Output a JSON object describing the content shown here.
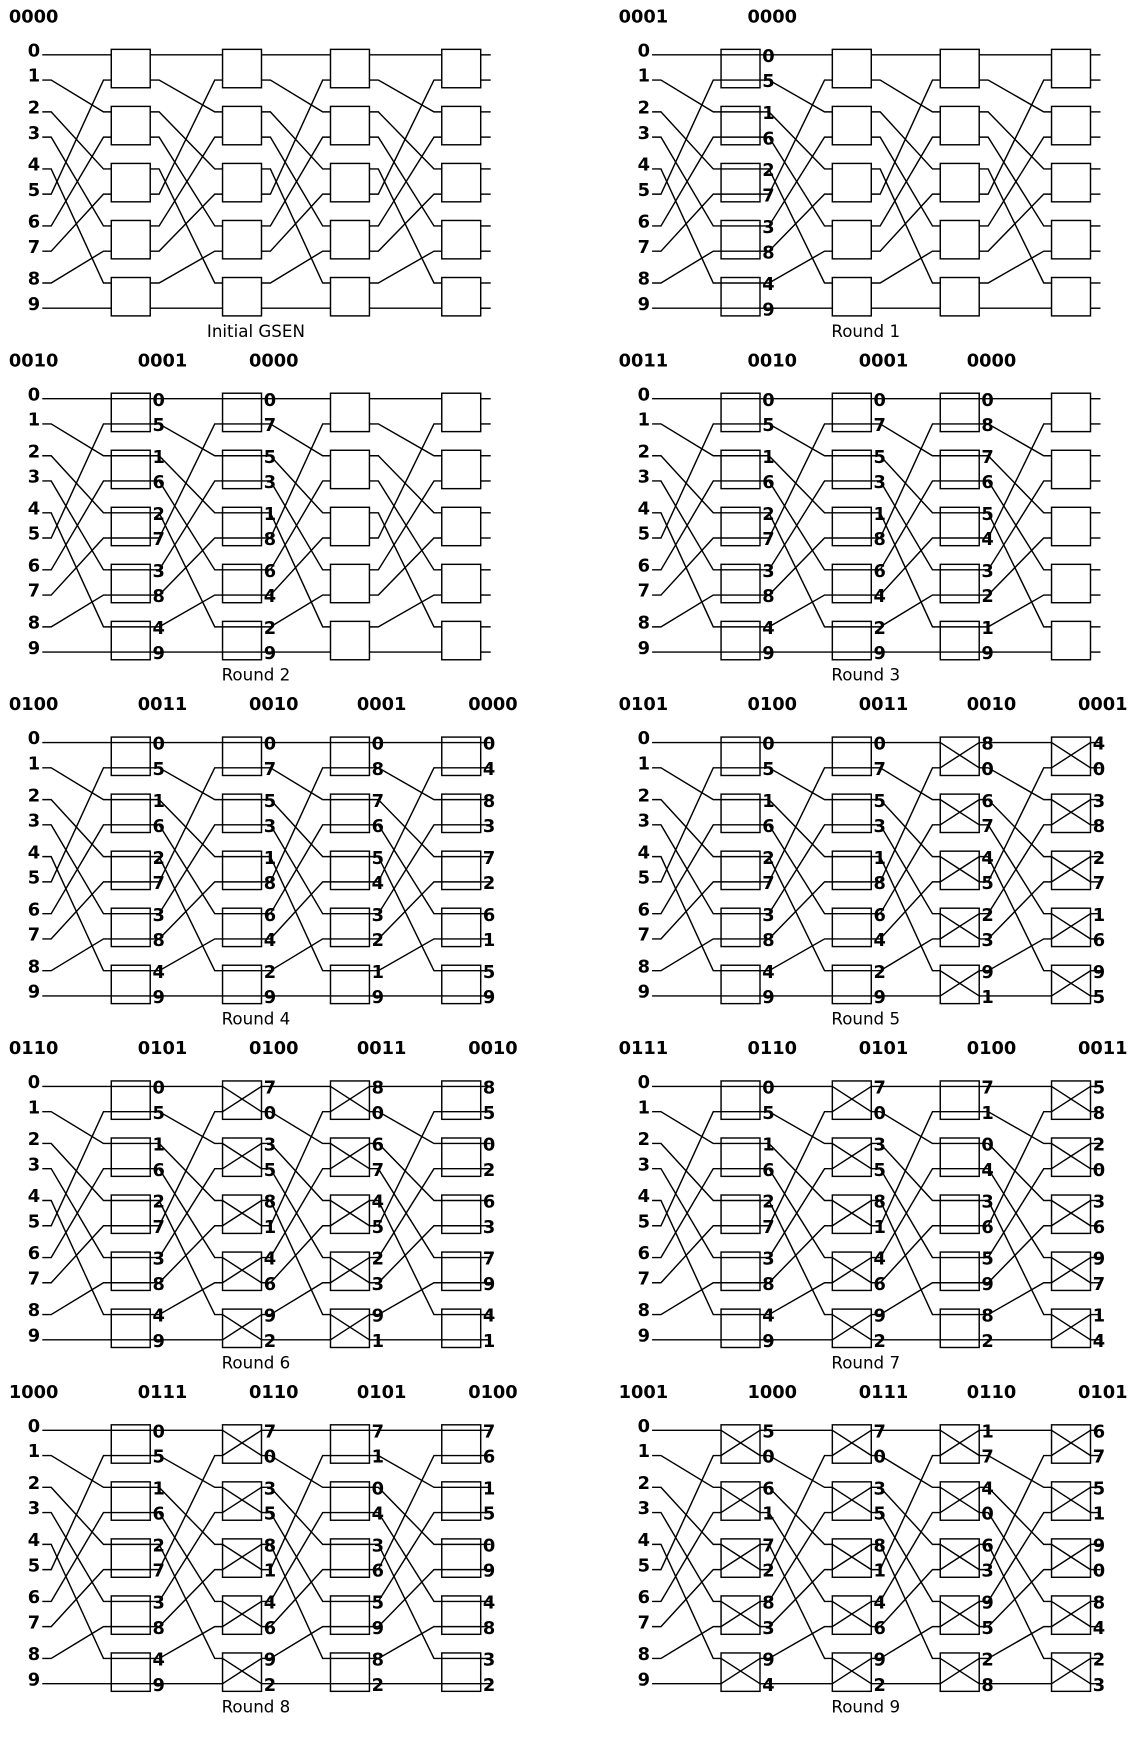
{
  "inputs": [
    "0",
    "1",
    "2",
    "3",
    "4",
    "5",
    "6",
    "7",
    "8",
    "9"
  ],
  "panels": [
    {
      "label": "0000",
      "caption": "Initial GSEN",
      "stages": [
        {
          "crossed": [
            false,
            false,
            false,
            false,
            false
          ]
        },
        {
          "crossed": [
            false,
            false,
            false,
            false,
            false
          ]
        },
        {
          "crossed": [
            false,
            false,
            false,
            false,
            false
          ]
        },
        {
          "crossed": [
            false,
            false,
            false,
            false,
            false
          ]
        }
      ]
    },
    {
      "label": "0001",
      "caption": "Round 1",
      "stages": [
        {
          "counter": "0000",
          "crossed": [
            false,
            false,
            false,
            false,
            false
          ],
          "outputs": [
            "0",
            "5",
            "1",
            "6",
            "2",
            "7",
            "3",
            "8",
            "4",
            "9"
          ]
        },
        {
          "crossed": [
            false,
            false,
            false,
            false,
            false
          ]
        },
        {
          "crossed": [
            false,
            false,
            false,
            false,
            false
          ]
        },
        {
          "crossed": [
            false,
            false,
            false,
            false,
            false
          ]
        }
      ]
    },
    {
      "label": "0010",
      "caption": "Round 2",
      "stages": [
        {
          "counter": "0001",
          "crossed": [
            false,
            false,
            false,
            false,
            false
          ],
          "outputs": [
            "0",
            "5",
            "1",
            "6",
            "2",
            "7",
            "3",
            "8",
            "4",
            "9"
          ]
        },
        {
          "counter": "0000",
          "crossed": [
            false,
            false,
            false,
            false,
            false
          ],
          "outputs": [
            "0",
            "7",
            "5",
            "3",
            "1",
            "8",
            "6",
            "4",
            "2",
            "9"
          ]
        },
        {
          "crossed": [
            false,
            false,
            false,
            false,
            false
          ]
        },
        {
          "crossed": [
            false,
            false,
            false,
            false,
            false
          ]
        }
      ]
    },
    {
      "label": "0011",
      "caption": "Round 3",
      "stages": [
        {
          "counter": "0010",
          "crossed": [
            false,
            false,
            false,
            false,
            false
          ],
          "outputs": [
            "0",
            "5",
            "1",
            "6",
            "2",
            "7",
            "3",
            "8",
            "4",
            "9"
          ]
        },
        {
          "counter": "0001",
          "crossed": [
            false,
            false,
            false,
            false,
            false
          ],
          "outputs": [
            "0",
            "7",
            "5",
            "3",
            "1",
            "8",
            "6",
            "4",
            "2",
            "9"
          ]
        },
        {
          "counter": "0000",
          "crossed": [
            false,
            false,
            false,
            false,
            false
          ],
          "outputs": [
            "0",
            "8",
            "7",
            "6",
            "5",
            "4",
            "3",
            "2",
            "1",
            "9"
          ]
        },
        {
          "crossed": [
            false,
            false,
            false,
            false,
            false
          ]
        }
      ]
    },
    {
      "label": "0100",
      "caption": "Round 4",
      "stages": [
        {
          "counter": "0011",
          "crossed": [
            false,
            false,
            false,
            false,
            false
          ],
          "outputs": [
            "0",
            "5",
            "1",
            "6",
            "2",
            "7",
            "3",
            "8",
            "4",
            "9"
          ]
        },
        {
          "counter": "0010",
          "crossed": [
            false,
            false,
            false,
            false,
            false
          ],
          "outputs": [
            "0",
            "7",
            "5",
            "3",
            "1",
            "8",
            "6",
            "4",
            "2",
            "9"
          ]
        },
        {
          "counter": "0001",
          "crossed": [
            false,
            false,
            false,
            false,
            false
          ],
          "outputs": [
            "0",
            "8",
            "7",
            "6",
            "5",
            "4",
            "3",
            "2",
            "1",
            "9"
          ]
        },
        {
          "counter": "0000",
          "crossed": [
            false,
            false,
            false,
            false,
            false
          ],
          "outputs": [
            "0",
            "4",
            "8",
            "3",
            "7",
            "2",
            "6",
            "1",
            "5",
            "9"
          ]
        }
      ]
    },
    {
      "label": "0101",
      "caption": "Round 5",
      "stages": [
        {
          "counter": "0100",
          "crossed": [
            false,
            false,
            false,
            false,
            false
          ],
          "outputs": [
            "0",
            "5",
            "1",
            "6",
            "2",
            "7",
            "3",
            "8",
            "4",
            "9"
          ]
        },
        {
          "counter": "0011",
          "crossed": [
            false,
            false,
            false,
            false,
            false
          ],
          "outputs": [
            "0",
            "7",
            "5",
            "3",
            "1",
            "8",
            "6",
            "4",
            "2",
            "9"
          ]
        },
        {
          "counter": "0010",
          "crossed": [
            true,
            true,
            true,
            true,
            true
          ],
          "outputs": [
            "8",
            "0",
            "6",
            "7",
            "4",
            "5",
            "2",
            "3",
            "9",
            "1"
          ]
        },
        {
          "counter": "0001",
          "crossed": [
            true,
            true,
            true,
            true,
            true
          ],
          "outputs": [
            "4",
            "0",
            "3",
            "8",
            "2",
            "7",
            "1",
            "6",
            "9",
            "5"
          ]
        }
      ]
    },
    {
      "label": "0110",
      "caption": "Round 6",
      "stages": [
        {
          "counter": "0101",
          "crossed": [
            false,
            false,
            false,
            false,
            false
          ],
          "outputs": [
            "0",
            "5",
            "1",
            "6",
            "2",
            "7",
            "3",
            "8",
            "4",
            "9"
          ]
        },
        {
          "counter": "0100",
          "crossed": [
            true,
            true,
            true,
            true,
            true
          ],
          "outputs": [
            "7",
            "0",
            "3",
            "5",
            "8",
            "1",
            "4",
            "6",
            "9",
            "2"
          ]
        },
        {
          "counter": "0011",
          "crossed": [
            true,
            true,
            true,
            true,
            true
          ],
          "outputs": [
            "8",
            "0",
            "6",
            "7",
            "4",
            "5",
            "2",
            "3",
            "9",
            "1"
          ]
        },
        {
          "counter": "0010",
          "crossed": [
            false,
            false,
            false,
            false,
            false
          ],
          "outputs": [
            "8",
            "5",
            "0",
            "2",
            "6",
            "3",
            "7",
            "9",
            "4",
            "1"
          ]
        }
      ]
    },
    {
      "label": "0111",
      "caption": "Round 7",
      "stages": [
        {
          "counter": "0110",
          "crossed": [
            false,
            false,
            false,
            false,
            false
          ],
          "outputs": [
            "0",
            "5",
            "1",
            "6",
            "2",
            "7",
            "3",
            "8",
            "4",
            "9"
          ]
        },
        {
          "counter": "0101",
          "crossed": [
            true,
            true,
            true,
            true,
            true
          ],
          "outputs": [
            "7",
            "0",
            "3",
            "5",
            "8",
            "1",
            "4",
            "6",
            "9",
            "2"
          ]
        },
        {
          "counter": "0100",
          "crossed": [
            false,
            false,
            false,
            false,
            false
          ],
          "outputs": [
            "7",
            "1",
            "0",
            "4",
            "3",
            "6",
            "5",
            "9",
            "8",
            "2"
          ]
        },
        {
          "counter": "0011",
          "crossed": [
            true,
            true,
            true,
            true,
            true
          ],
          "outputs": [
            "5",
            "8",
            "2",
            "0",
            "3",
            "6",
            "9",
            "7",
            "1",
            "4"
          ]
        }
      ]
    },
    {
      "label": "1000",
      "caption": "Round 8",
      "stages": [
        {
          "counter": "0111",
          "crossed": [
            false,
            false,
            false,
            false,
            false
          ],
          "outputs": [
            "0",
            "5",
            "1",
            "6",
            "2",
            "7",
            "3",
            "8",
            "4",
            "9"
          ]
        },
        {
          "counter": "0110",
          "crossed": [
            true,
            true,
            true,
            true,
            true
          ],
          "outputs": [
            "7",
            "0",
            "3",
            "5",
            "8",
            "1",
            "4",
            "6",
            "9",
            "2"
          ]
        },
        {
          "counter": "0101",
          "crossed": [
            false,
            false,
            false,
            false,
            false
          ],
          "outputs": [
            "7",
            "1",
            "0",
            "4",
            "3",
            "6",
            "5",
            "9",
            "8",
            "2"
          ]
        },
        {
          "counter": "0100",
          "crossed": [
            false,
            false,
            false,
            false,
            false
          ],
          "outputs": [
            "7",
            "6",
            "1",
            "5",
            "0",
            "9",
            "4",
            "8",
            "3",
            "2"
          ]
        }
      ]
    },
    {
      "label": "1001",
      "caption": "Round 9",
      "stages": [
        {
          "counter": "1000",
          "crossed": [
            true,
            true,
            true,
            true,
            true
          ],
          "outputs": [
            "5",
            "0",
            "6",
            "1",
            "7",
            "2",
            "8",
            "3",
            "9",
            "4"
          ]
        },
        {
          "counter": "0111",
          "crossed": [
            true,
            true,
            true,
            true,
            true
          ],
          "outputs": [
            "7",
            "0",
            "3",
            "5",
            "8",
            "1",
            "4",
            "6",
            "9",
            "2"
          ]
        },
        {
          "counter": "0110",
          "crossed": [
            true,
            true,
            true,
            true,
            true
          ],
          "outputs": [
            "1",
            "7",
            "4",
            "0",
            "6",
            "3",
            "9",
            "5",
            "2",
            "8"
          ]
        },
        {
          "counter": "0101",
          "crossed": [
            true,
            true,
            true,
            true,
            true
          ],
          "outputs": [
            "6",
            "7",
            "5",
            "1",
            "9",
            "0",
            "8",
            "4",
            "2",
            "3"
          ]
        }
      ]
    }
  ]
}
